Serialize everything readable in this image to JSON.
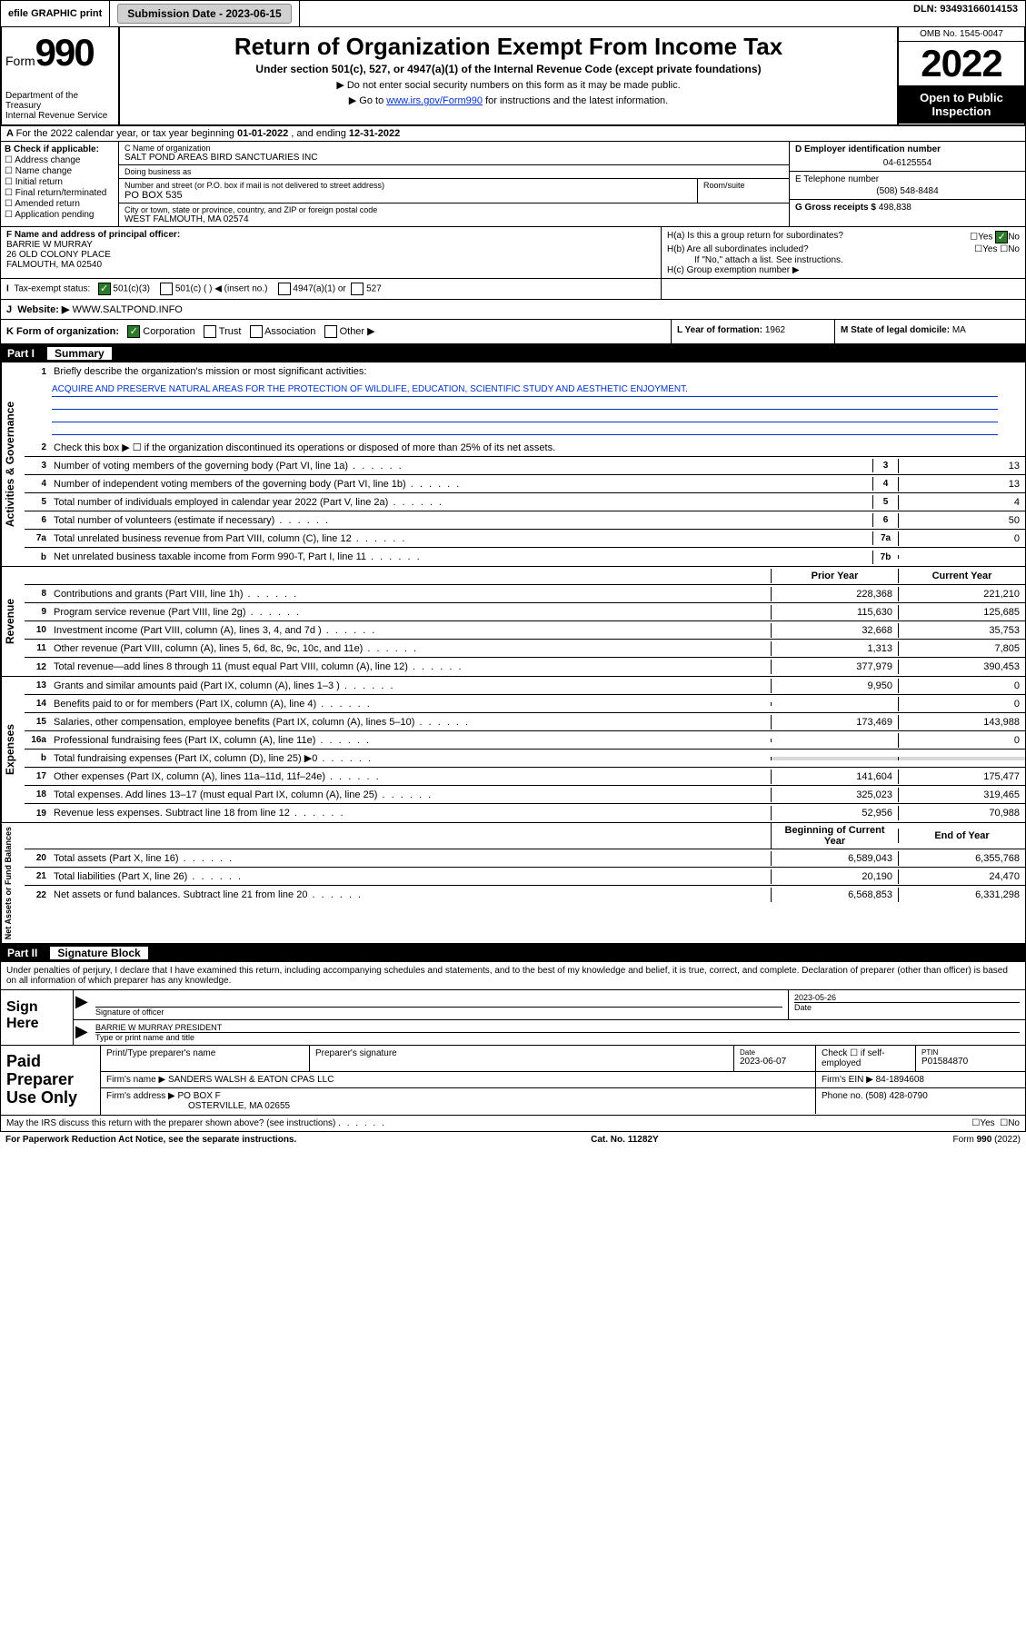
{
  "topbar": {
    "efile": "efile GRAPHIC print",
    "sub_label": "Submission Date - ",
    "sub_date": "2023-06-15",
    "dln_label": "DLN: ",
    "dln": "93493166014153"
  },
  "header": {
    "form_prefix": "Form",
    "form_number": "990",
    "dept": "Department of the Treasury\nInternal Revenue Service",
    "title": "Return of Organization Exempt From Income Tax",
    "subtitle": "Under section 501(c), 527, or 4947(a)(1) of the Internal Revenue Code (except private foundations)",
    "note1": "Do not enter social security numbers on this form as it may be made public.",
    "note2_pre": "Go to ",
    "note2_link": "www.irs.gov/Form990",
    "note2_post": " for instructions and the latest information.",
    "omb": "OMB No. 1545-0047",
    "year": "2022",
    "open_public": "Open to Public Inspection"
  },
  "section_a": {
    "text_pre": "For the 2022 calendar year, or tax year beginning ",
    "begin": "01-01-2022",
    "text_mid": " , and ending ",
    "end": "12-31-2022"
  },
  "col_b": {
    "title": "B Check if applicable:",
    "items": [
      "Address change",
      "Name change",
      "Initial return",
      "Final return/terminated",
      "Amended return",
      "Application pending"
    ]
  },
  "col_c": {
    "name_label": "C Name of organization",
    "name": "SALT POND AREAS BIRD SANCTUARIES INC",
    "dba_label": "Doing business as",
    "dba": "",
    "street_label": "Number and street (or P.O. box if mail is not delivered to street address)",
    "street": "PO BOX 535",
    "room_label": "Room/suite",
    "city_label": "City or town, state or province, country, and ZIP or foreign postal code",
    "city": "WEST FALMOUTH, MA  02574"
  },
  "col_d": {
    "label": "D Employer identification number",
    "value": "04-6125554"
  },
  "col_e": {
    "label": "E Telephone number",
    "value": "(508) 548-8484"
  },
  "col_g": {
    "label": "G Gross receipts $ ",
    "value": "498,838"
  },
  "col_f": {
    "label": "F Name and address of principal officer:",
    "name": "BARRIE W MURRAY",
    "addr1": "26 OLD COLONY PLACE",
    "addr2": "FALMOUTH, MA  02540"
  },
  "col_h": {
    "ha_label": "H(a)  Is this a group return for subordinates?",
    "ha_yes": "Yes",
    "ha_no": "No",
    "hb_label": "H(b)  Are all subordinates included?",
    "hb_yes": "Yes",
    "hb_no": "No",
    "hb_note": "If \"No,\" attach a list. See instructions.",
    "hc_label": "H(c)  Group exemption number ▶"
  },
  "row_i": {
    "label": "Tax-exempt status:",
    "opt1": "501(c)(3)",
    "opt2": "501(c) (  ) ◀ (insert no.)",
    "opt3": "4947(a)(1) or",
    "opt4": "527"
  },
  "row_j": {
    "label": "Website: ▶ ",
    "value": "WWW.SALTPOND.INFO"
  },
  "row_k": {
    "label": "K Form of organization:",
    "opts": [
      "Corporation",
      "Trust",
      "Association",
      "Other ▶"
    ]
  },
  "row_l": {
    "label": "L Year of formation: ",
    "value": "1962"
  },
  "row_m": {
    "label": "M State of legal domicile: ",
    "value": "MA"
  },
  "part1": {
    "header_num": "Part I",
    "header_title": "Summary",
    "mission_label": "Briefly describe the organization's mission or most significant activities:",
    "mission": "ACQUIRE AND PRESERVE NATURAL AREAS FOR THE PROTECTION OF WILDLIFE, EDUCATION, SCIENTIFIC STUDY AND AESTHETIC ENJOYMENT.",
    "line2": "Check this box ▶ ☐ if the organization discontinued its operations or disposed of more than 25% of its net assets.",
    "sections": [
      {
        "side": "Activities & Governance",
        "rows": [
          {
            "n": "3",
            "d": "Number of voting members of the governing body (Part VI, line 1a)",
            "box": "3",
            "val": "13"
          },
          {
            "n": "4",
            "d": "Number of independent voting members of the governing body (Part VI, line 1b)",
            "box": "4",
            "val": "13"
          },
          {
            "n": "5",
            "d": "Total number of individuals employed in calendar year 2022 (Part V, line 2a)",
            "box": "5",
            "val": "4"
          },
          {
            "n": "6",
            "d": "Total number of volunteers (estimate if necessary)",
            "box": "6",
            "val": "50"
          },
          {
            "n": "7a",
            "d": "Total unrelated business revenue from Part VIII, column (C), line 12",
            "box": "7a",
            "val": "0"
          },
          {
            "n": "b",
            "d": "Net unrelated business taxable income from Form 990-T, Part I, line 11",
            "box": "7b",
            "val": ""
          }
        ]
      }
    ],
    "two_col_header": {
      "prior": "Prior Year",
      "current": "Current Year"
    },
    "revenue": {
      "side": "Revenue",
      "rows": [
        {
          "n": "8",
          "d": "Contributions and grants (Part VIII, line 1h)",
          "p": "228,368",
          "c": "221,210"
        },
        {
          "n": "9",
          "d": "Program service revenue (Part VIII, line 2g)",
          "p": "115,630",
          "c": "125,685"
        },
        {
          "n": "10",
          "d": "Investment income (Part VIII, column (A), lines 3, 4, and 7d )",
          "p": "32,668",
          "c": "35,753"
        },
        {
          "n": "11",
          "d": "Other revenue (Part VIII, column (A), lines 5, 6d, 8c, 9c, 10c, and 11e)",
          "p": "1,313",
          "c": "7,805"
        },
        {
          "n": "12",
          "d": "Total revenue—add lines 8 through 11 (must equal Part VIII, column (A), line 12)",
          "p": "377,979",
          "c": "390,453"
        }
      ]
    },
    "expenses": {
      "side": "Expenses",
      "rows": [
        {
          "n": "13",
          "d": "Grants and similar amounts paid (Part IX, column (A), lines 1–3 )",
          "p": "9,950",
          "c": "0"
        },
        {
          "n": "14",
          "d": "Benefits paid to or for members (Part IX, column (A), line 4)",
          "p": "",
          "c": "0"
        },
        {
          "n": "15",
          "d": "Salaries, other compensation, employee benefits (Part IX, column (A), lines 5–10)",
          "p": "173,469",
          "c": "143,988"
        },
        {
          "n": "16a",
          "d": "Professional fundraising fees (Part IX, column (A), line 11e)",
          "p": "",
          "c": "0"
        },
        {
          "n": "b",
          "d": "Total fundraising expenses (Part IX, column (D), line 25) ▶0",
          "p": "shade",
          "c": "shade"
        },
        {
          "n": "17",
          "d": "Other expenses (Part IX, column (A), lines 11a–11d, 11f–24e)",
          "p": "141,604",
          "c": "175,477"
        },
        {
          "n": "18",
          "d": "Total expenses. Add lines 13–17 (must equal Part IX, column (A), line 25)",
          "p": "325,023",
          "c": "319,465"
        },
        {
          "n": "19",
          "d": "Revenue less expenses. Subtract line 18 from line 12",
          "p": "52,956",
          "c": "70,988"
        }
      ]
    },
    "netassets": {
      "side": "Net Assets or Fund Balances",
      "header": {
        "b": "Beginning of Current Year",
        "e": "End of Year"
      },
      "rows": [
        {
          "n": "20",
          "d": "Total assets (Part X, line 16)",
          "p": "6,589,043",
          "c": "6,355,768"
        },
        {
          "n": "21",
          "d": "Total liabilities (Part X, line 26)",
          "p": "20,190",
          "c": "24,470"
        },
        {
          "n": "22",
          "d": "Net assets or fund balances. Subtract line 21 from line 20",
          "p": "6,568,853",
          "c": "6,331,298"
        }
      ]
    }
  },
  "part2": {
    "header_num": "Part II",
    "header_title": "Signature Block",
    "penalties": "Under penalties of perjury, I declare that I have examined this return, including accompanying schedules and statements, and to the best of my knowledge and belief, it is true, correct, and complete. Declaration of preparer (other than officer) is based on all information of which preparer has any knowledge.",
    "sign_here": "Sign Here",
    "sig_of_officer": "Signature of officer",
    "sig_date": "2023-05-26",
    "date_label": "Date",
    "officer_name": "BARRIE W MURRAY  PRESIDENT",
    "type_name": "Type or print name and title",
    "paid": "Paid Preparer Use Only",
    "prep_name_label": "Print/Type preparer's name",
    "prep_sig_label": "Preparer's signature",
    "prep_date_label": "Date",
    "prep_date": "2023-06-07",
    "check_if": "Check ☐ if self-employed",
    "ptin_label": "PTIN",
    "ptin": "P01584870",
    "firm_name_label": "Firm's name    ▶ ",
    "firm_name": "SANDERS WALSH & EATON CPAS LLC",
    "firm_ein_label": "Firm's EIN ▶ ",
    "firm_ein": "84-1894608",
    "firm_addr_label": "Firm's address ▶ ",
    "firm_addr1": "PO BOX F",
    "firm_addr2": "OSTERVILLE, MA  02655",
    "phone_label": "Phone no. ",
    "phone": "(508) 428-0790",
    "may_irs": "May the IRS discuss this return with the preparer shown above? (see instructions)",
    "yes": "Yes",
    "no": "No"
  },
  "footer": {
    "paperwork": "For Paperwork Reduction Act Notice, see the separate instructions.",
    "cat": "Cat. No. 11282Y",
    "form": "Form 990 (2022)"
  },
  "colors": {
    "link": "#0033cc",
    "check_green": "#2a7a2a",
    "shade": "#d8d8d8"
  }
}
